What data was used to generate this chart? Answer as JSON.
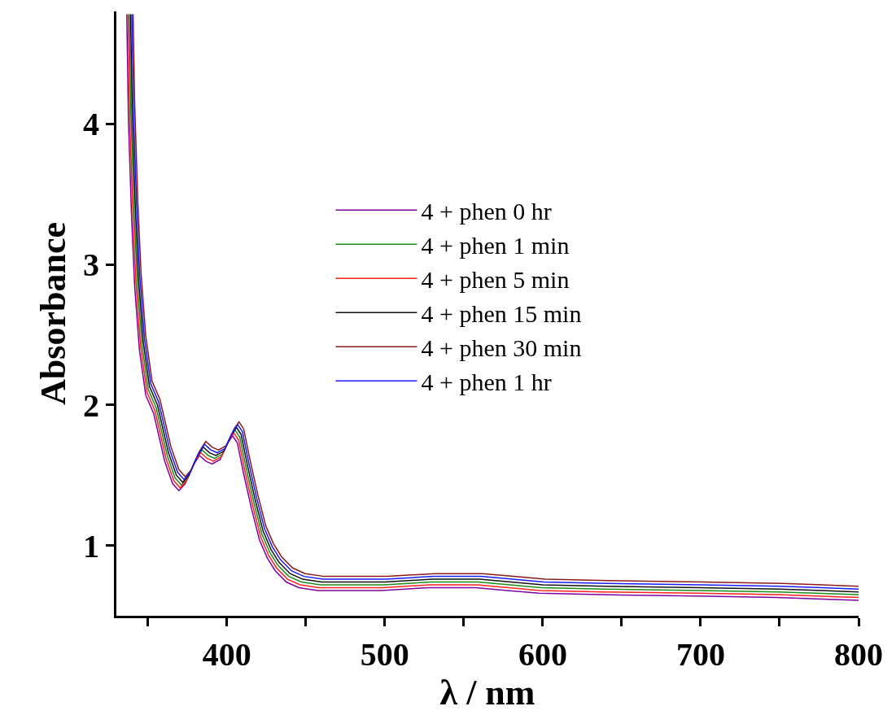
{
  "chart_data": {
    "type": "line",
    "xlabel": "λ / nm",
    "ylabel": "Absorbance",
    "xlim": [
      330,
      800
    ],
    "xticks": [
      {
        "value": 350,
        "label": null
      },
      400,
      {
        "value": 450,
        "label": null
      },
      500,
      {
        "value": 550,
        "label": null
      },
      600,
      {
        "value": 650,
        "label": null
      },
      700,
      {
        "value": 750,
        "label": null
      },
      800
    ],
    "ylim": [
      0.5,
      4.8
    ],
    "yticks": [
      1,
      2,
      3,
      4
    ],
    "legend": "right",
    "marker": "none",
    "line_style": "solid",
    "series": [
      {
        "name": "4 + phen 0 hr",
        "color": "#7f00a0",
        "x": [
          336.6,
          337.6,
          339.6,
          341.6,
          344.6,
          348.6,
          353.6,
          360.6,
          365.6,
          369.6,
          373.6,
          378.6,
          382.6,
          386.6,
          390.6,
          395.6,
          400.6,
          403.6,
          406.6,
          410.6,
          415.6,
          420.6,
          425.6,
          430.6,
          437.6,
          445.6,
          457.6,
          477.6,
          497.6,
          527.6,
          557.6,
          577.6,
          597.6,
          637.6,
          697.6,
          747.6,
          800
        ],
        "values": [
          4.78,
          4.04,
          3.34,
          2.84,
          2.39,
          2.07,
          1.94,
          1.6,
          1.44,
          1.39,
          1.44,
          1.57,
          1.64,
          1.6,
          1.58,
          1.61,
          1.73,
          1.78,
          1.73,
          1.51,
          1.26,
          1.04,
          0.91,
          0.82,
          0.74,
          0.7,
          0.68,
          0.68,
          0.68,
          0.7,
          0.7,
          0.68,
          0.66,
          0.65,
          0.64,
          0.63,
          0.61
        ]
      },
      {
        "name": "4 + phen 1 min",
        "color": "#1a8c1a",
        "x": [
          338.2,
          339.2,
          341.2,
          343.2,
          346.2,
          350.2,
          355.2,
          362.2,
          367.2,
          371.2,
          375.2,
          380.2,
          384.2,
          388.2,
          392.2,
          397.2,
          402.2,
          405.2,
          408.2,
          412.2,
          417.2,
          422.2,
          427.2,
          432.2,
          439.2,
          447.2,
          459.2,
          479.2,
          499.2,
          529.2,
          559.2,
          579.2,
          599.2,
          639.2,
          699.2,
          749.2,
          800
        ],
        "values": [
          4.78,
          4.08,
          3.38,
          2.88,
          2.43,
          2.11,
          1.98,
          1.64,
          1.48,
          1.43,
          1.48,
          1.61,
          1.68,
          1.64,
          1.62,
          1.65,
          1.77,
          1.82,
          1.77,
          1.55,
          1.3,
          1.08,
          0.95,
          0.86,
          0.78,
          0.74,
          0.72,
          0.72,
          0.72,
          0.74,
          0.74,
          0.72,
          0.7,
          0.69,
          0.68,
          0.67,
          0.65
        ]
      },
      {
        "name": "4 + phen 5 min",
        "color": "#ff2020",
        "x": [
          337.4,
          338.4,
          340.4,
          342.4,
          345.4,
          349.4,
          354.4,
          361.4,
          366.4,
          370.4,
          374.4,
          379.4,
          383.4,
          387.4,
          391.4,
          396.4,
          401.4,
          404.4,
          407.4,
          411.4,
          416.4,
          421.4,
          426.4,
          431.4,
          438.4,
          446.4,
          458.4,
          478.4,
          498.4,
          528.4,
          558.4,
          578.4,
          598.4,
          638.4,
          698.4,
          748.4,
          800
        ],
        "values": [
          4.78,
          4.06,
          3.36,
          2.86,
          2.41,
          2.09,
          1.96,
          1.62,
          1.46,
          1.41,
          1.46,
          1.59,
          1.66,
          1.62,
          1.6,
          1.63,
          1.75,
          1.8,
          1.75,
          1.53,
          1.28,
          1.06,
          0.93,
          0.84,
          0.76,
          0.72,
          0.7,
          0.7,
          0.7,
          0.72,
          0.72,
          0.7,
          0.68,
          0.67,
          0.66,
          0.65,
          0.63
        ]
      },
      {
        "name": "4 + phen 15 min",
        "color": "#111111",
        "x": [
          339,
          340,
          342,
          344,
          347,
          351,
          356,
          363,
          368,
          372,
          376,
          381,
          385,
          389,
          393,
          398,
          403,
          406,
          409,
          413,
          418,
          423,
          428,
          433,
          440,
          448,
          460,
          480,
          500,
          530,
          560,
          580,
          600,
          640,
          700,
          750,
          800
        ],
        "values": [
          4.78,
          4.1,
          3.4,
          2.9,
          2.45,
          2.13,
          2.0,
          1.66,
          1.5,
          1.45,
          1.5,
          1.63,
          1.7,
          1.66,
          1.64,
          1.67,
          1.79,
          1.84,
          1.79,
          1.57,
          1.32,
          1.1,
          0.97,
          0.88,
          0.8,
          0.76,
          0.74,
          0.74,
          0.74,
          0.76,
          0.76,
          0.74,
          0.72,
          0.71,
          0.7,
          0.69,
          0.67
        ]
      },
      {
        "name": "4 + phen 30 min",
        "color": "#8b1a1a",
        "x": [
          340.6,
          341.6,
          343.6,
          345.6,
          348.6,
          352.6,
          357.6,
          364.6,
          369.6,
          373.6,
          377.6,
          382.6,
          386.6,
          390.6,
          394.6,
          399.6,
          404.6,
          407.6,
          410.6,
          414.6,
          419.6,
          424.6,
          429.6,
          434.6,
          441.6,
          449.6,
          461.6,
          481.6,
          501.6,
          531.6,
          561.6,
          581.6,
          601.6,
          641.6,
          701.6,
          751.6,
          800
        ],
        "values": [
          4.78,
          4.14,
          3.44,
          2.94,
          2.49,
          2.17,
          2.04,
          1.7,
          1.54,
          1.49,
          1.54,
          1.67,
          1.74,
          1.7,
          1.68,
          1.71,
          1.83,
          1.88,
          1.83,
          1.61,
          1.36,
          1.14,
          1.01,
          0.92,
          0.84,
          0.8,
          0.78,
          0.78,
          0.78,
          0.8,
          0.8,
          0.78,
          0.76,
          0.75,
          0.74,
          0.73,
          0.71
        ]
      },
      {
        "name": "4 + phen 1 hr",
        "color": "#1a1aff",
        "x": [
          339.8,
          340.8,
          342.8,
          344.8,
          347.8,
          351.8,
          356.8,
          363.8,
          368.8,
          372.8,
          376.8,
          381.8,
          385.8,
          389.8,
          393.8,
          398.8,
          403.8,
          406.8,
          409.8,
          413.8,
          418.8,
          423.8,
          428.8,
          433.8,
          440.8,
          448.8,
          460.8,
          480.8,
          500.8,
          530.8,
          560.8,
          580.8,
          600.8,
          640.8,
          700.8,
          750.8,
          800
        ],
        "values": [
          4.78,
          4.12,
          3.42,
          2.92,
          2.47,
          2.15,
          2.02,
          1.68,
          1.52,
          1.47,
          1.52,
          1.65,
          1.72,
          1.68,
          1.66,
          1.69,
          1.81,
          1.86,
          1.81,
          1.59,
          1.34,
          1.12,
          0.99,
          0.9,
          0.82,
          0.78,
          0.76,
          0.76,
          0.76,
          0.78,
          0.78,
          0.76,
          0.74,
          0.73,
          0.72,
          0.71,
          0.69
        ]
      }
    ]
  }
}
